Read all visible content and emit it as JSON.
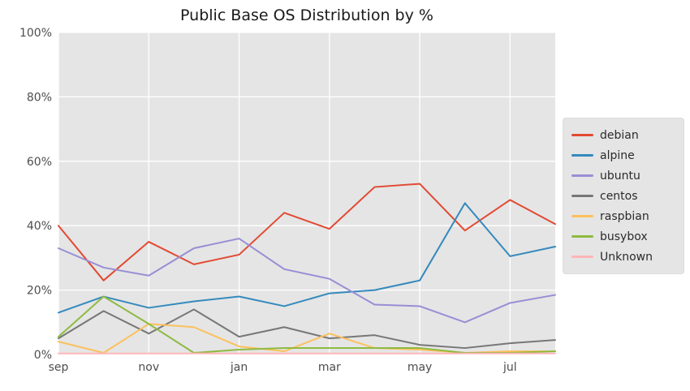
{
  "chart_data": {
    "type": "line",
    "title": "Public Base OS Distribution by %",
    "xlabel": "",
    "ylabel": "",
    "grid": true,
    "legend_position": "right",
    "plot_bg": "#E5E5E5",
    "grid_color": "#FFFFFF",
    "tick_label_color": "#4d4d4d",
    "xlim": [
      0,
      11
    ],
    "ylim": [
      0,
      100
    ],
    "x": [
      0,
      1,
      2,
      3,
      4,
      5,
      6,
      7,
      8,
      9,
      10,
      11
    ],
    "x_tick_positions": [
      0,
      2,
      4,
      6,
      8,
      10
    ],
    "x_tick_labels": [
      "sep",
      "nov",
      "jan",
      "mar",
      "may",
      "jul"
    ],
    "y_ticks": [
      0,
      20,
      40,
      60,
      80,
      100
    ],
    "y_tick_labels": [
      "0%",
      "20%",
      "40%",
      "60%",
      "80%",
      "100%"
    ],
    "series": [
      {
        "name": "debian",
        "color": "#E24A33",
        "values": [
          40,
          23,
          35,
          28,
          31,
          44,
          39,
          52,
          53,
          38.5,
          48,
          40.5
        ]
      },
      {
        "name": "alpine",
        "color": "#348ABD",
        "values": [
          13,
          18,
          14.5,
          16.5,
          18,
          15,
          19,
          20,
          23,
          47,
          30.5,
          33.5
        ]
      },
      {
        "name": "ubuntu",
        "color": "#988ED5",
        "values": [
          33,
          27,
          24.5,
          33,
          36,
          26.5,
          23.5,
          15.5,
          15,
          10,
          16,
          18.5
        ]
      },
      {
        "name": "centos",
        "color": "#777777",
        "values": [
          5,
          13.5,
          6.5,
          14,
          5.5,
          8.5,
          5,
          6,
          3,
          2,
          3.5,
          4.5
        ]
      },
      {
        "name": "raspbian",
        "color": "#FBC15E",
        "values": [
          4,
          0.5,
          9.5,
          8.5,
          2.5,
          1,
          6.5,
          2,
          1.5,
          0.5,
          1,
          1
        ]
      },
      {
        "name": "busybox",
        "color": "#8EBA42",
        "values": [
          5.5,
          18,
          9.5,
          0.5,
          1.5,
          2,
          2,
          2,
          2,
          0.5,
          0.5,
          1
        ]
      },
      {
        "name": "Unknown",
        "color": "#FFB5B8",
        "values": [
          0.3,
          0.3,
          0.3,
          0.3,
          0.3,
          0.3,
          0.3,
          0.3,
          0.3,
          0.3,
          0.3,
          0.3
        ]
      }
    ]
  }
}
